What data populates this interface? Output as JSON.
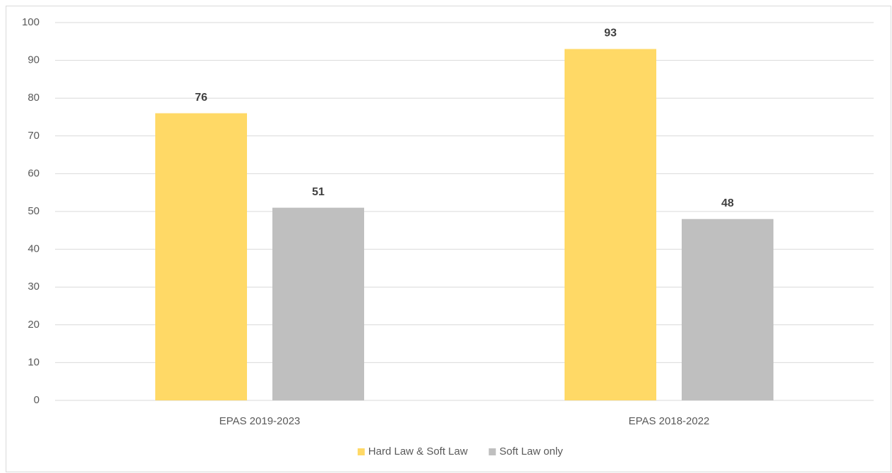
{
  "chart_data": {
    "type": "bar",
    "categories": [
      "EPAS 2019-2023",
      "EPAS 2018-2022"
    ],
    "series": [
      {
        "name": "Hard Law & Soft Law",
        "color": "#ffd966",
        "values": [
          76,
          93
        ]
      },
      {
        "name": "Soft Law only",
        "color": "#bfbfbf",
        "values": [
          51,
          48
        ]
      }
    ],
    "ylim": [
      0,
      100
    ],
    "yticks": [
      0,
      10,
      20,
      30,
      40,
      50,
      60,
      70,
      80,
      90,
      100
    ],
    "grid": true,
    "legend": "bottom",
    "data_labels": true
  }
}
